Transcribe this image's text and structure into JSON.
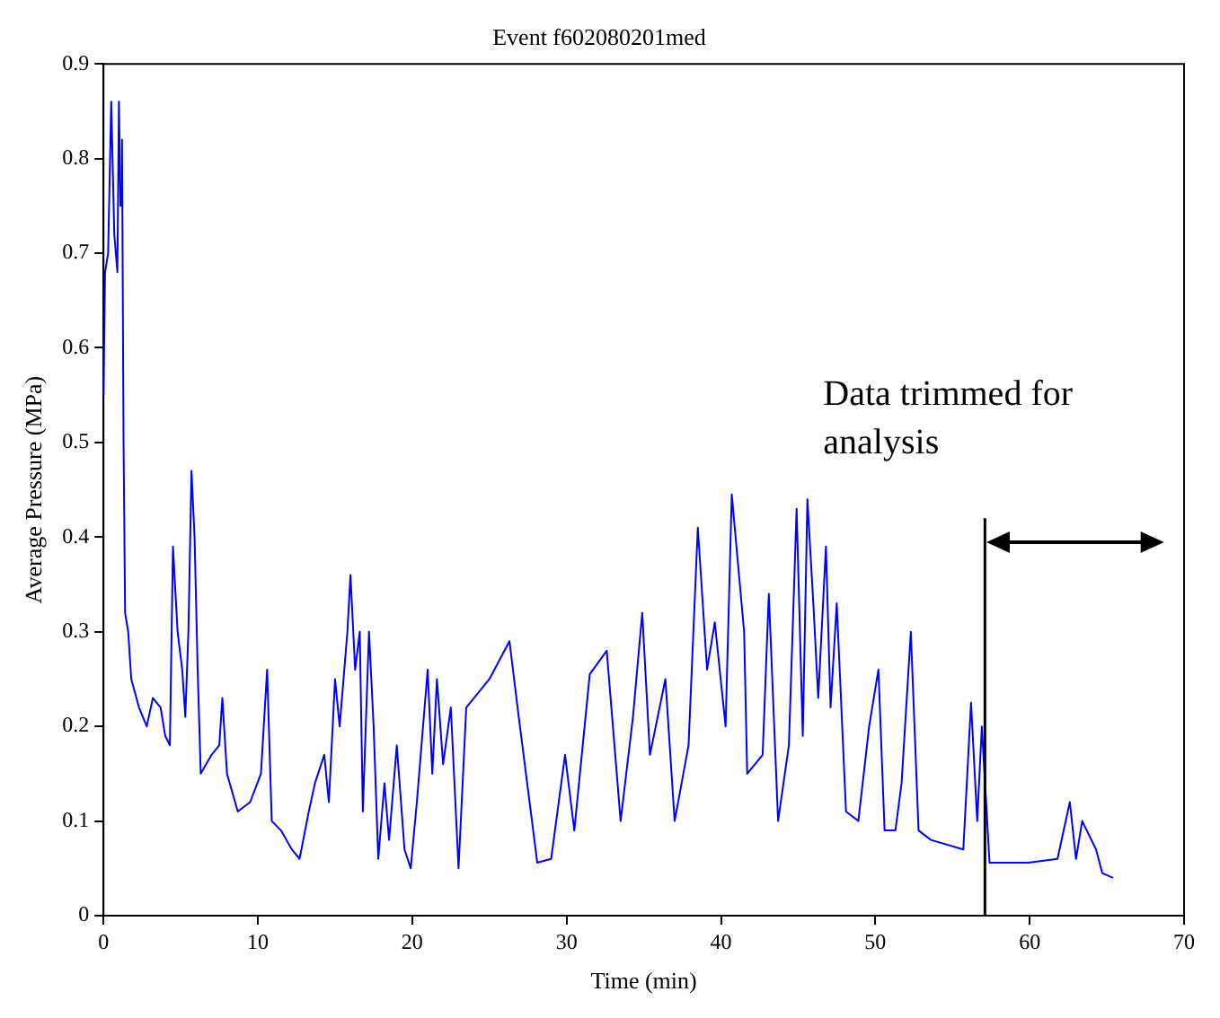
{
  "chart_data": {
    "type": "line",
    "title": "Event f602080201med",
    "xlabel": "Time (min)",
    "ylabel": "Average Pressure (MPa)",
    "xlim": [
      0,
      70
    ],
    "xticks": [
      0,
      10,
      20,
      30,
      40,
      50,
      60,
      70
    ],
    "ylim": [
      0,
      0.9
    ],
    "yticks": [
      0,
      0.1,
      0.2,
      0.3,
      0.4,
      0.5,
      0.6,
      0.7,
      0.8,
      0.9
    ],
    "grid": false,
    "legend": false,
    "marker": "none",
    "line_style": "solid",
    "ref_lines": [
      {
        "axis": "x",
        "value": 57.1,
        "color": "#000000"
      }
    ],
    "annotations": [
      "Data trimmed for analysis"
    ],
    "series": [
      {
        "color": "#0000ff",
        "x": [
          0,
          0.1,
          0.3,
          0.5,
          0.7,
          0.9,
          1.0,
          1.1,
          1.2,
          1.3,
          1.4,
          1.6,
          1.8,
          2.3,
          2.8,
          3.2,
          3.7,
          4.0,
          4.3,
          4.5,
          4.8,
          5.1,
          5.3,
          5.5,
          5.7,
          5.9,
          6.1,
          6.3,
          7.0,
          7.5,
          7.7,
          8.0,
          8.7,
          9.5,
          10.2,
          10.6,
          10.9,
          11.5,
          12.2,
          12.7,
          13.3,
          13.7,
          14.3,
          14.6,
          15.0,
          15.3,
          15.8,
          16.0,
          16.3,
          16.6,
          16.8,
          17.2,
          17.5,
          17.8,
          18.2,
          18.5,
          19.0,
          19.5,
          19.9,
          20.3,
          20.6,
          21.0,
          21.3,
          21.6,
          22.0,
          22.5,
          23.0,
          23.5,
          25.0,
          26.3,
          26.9,
          28.1,
          29.0,
          29.9,
          30.5,
          31.5,
          32.6,
          33.5,
          34.3,
          34.9,
          35.4,
          36.4,
          37.0,
          37.9,
          38.5,
          39.1,
          39.6,
          40.3,
          40.7,
          41.5,
          41.7,
          42.7,
          43.1,
          43.7,
          44.4,
          44.9,
          45.3,
          45.6,
          46.0,
          46.3,
          46.8,
          47.1,
          47.5,
          48.1,
          48.9,
          49.6,
          50.2,
          50.6,
          51.3,
          51.7,
          52.3,
          52.8,
          53.6,
          55.7,
          56.2,
          56.6,
          56.9,
          57.4,
          59.9,
          61.8,
          62.6,
          63.0,
          63.4,
          64.3,
          64.7,
          65.4
        ],
        "values": [
          0.55,
          0.68,
          0.7,
          0.86,
          0.72,
          0.68,
          0.86,
          0.75,
          0.82,
          0.5,
          0.32,
          0.3,
          0.25,
          0.22,
          0.2,
          0.23,
          0.22,
          0.19,
          0.18,
          0.39,
          0.3,
          0.26,
          0.21,
          0.3,
          0.47,
          0.4,
          0.26,
          0.15,
          0.17,
          0.18,
          0.23,
          0.15,
          0.11,
          0.12,
          0.15,
          0.26,
          0.1,
          0.09,
          0.07,
          0.06,
          0.11,
          0.14,
          0.17,
          0.12,
          0.25,
          0.2,
          0.3,
          0.36,
          0.26,
          0.3,
          0.11,
          0.3,
          0.2,
          0.06,
          0.14,
          0.08,
          0.18,
          0.07,
          0.05,
          0.12,
          0.18,
          0.26,
          0.15,
          0.25,
          0.16,
          0.22,
          0.05,
          0.22,
          0.25,
          0.29,
          0.21,
          0.056,
          0.06,
          0.17,
          0.09,
          0.255,
          0.28,
          0.1,
          0.21,
          0.32,
          0.17,
          0.25,
          0.1,
          0.18,
          0.41,
          0.26,
          0.31,
          0.2,
          0.445,
          0.3,
          0.15,
          0.17,
          0.34,
          0.1,
          0.18,
          0.43,
          0.19,
          0.44,
          0.325,
          0.23,
          0.39,
          0.22,
          0.33,
          0.11,
          0.1,
          0.2,
          0.26,
          0.09,
          0.09,
          0.14,
          0.3,
          0.09,
          0.08,
          0.07,
          0.225,
          0.1,
          0.2,
          0.056,
          0.056,
          0.06,
          0.12,
          0.06,
          0.1,
          0.07,
          0.045,
          0.04
        ]
      }
    ]
  }
}
